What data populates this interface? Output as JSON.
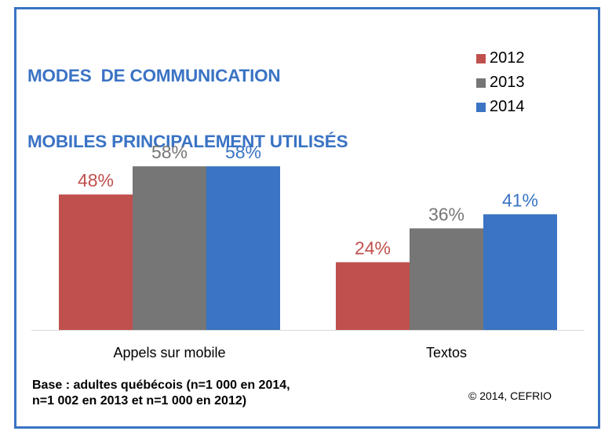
{
  "chart_data": {
    "type": "bar",
    "title": "MODES  DE COMMUNICATION\nMOBILES PRINCIPALEMENT UTILISÉS",
    "title_lines": [
      "MODES  DE COMMUNICATION",
      "MOBILES PRINCIPALEMENT UTILISÉS"
    ],
    "categories": [
      "Appels sur mobile",
      "Textos"
    ],
    "series": [
      {
        "name": "2012",
        "color": "#c0504d",
        "values": [
          48,
          24
        ],
        "labels": [
          "48%",
          "24%"
        ]
      },
      {
        "name": "2013",
        "color": "#767676",
        "values": [
          58,
          36
        ],
        "labels": [
          "58%",
          "36%"
        ]
      },
      {
        "name": "2014",
        "color": "#3a74c2",
        "values": [
          58,
          41
        ],
        "labels": [
          "58%",
          "41%"
        ]
      }
    ],
    "xlabel": "",
    "ylabel": "",
    "ylim": [
      0,
      100
    ],
    "unit": "%",
    "grid": false,
    "legend_position": "top-right"
  },
  "footnote": {
    "line1": "Base : adultes québécois (n=1 000 en 2014,",
    "line2": "n=1 002 en 2013 et n=1 000 en 2012)"
  },
  "copyright": "© 2014, CEFRIO"
}
